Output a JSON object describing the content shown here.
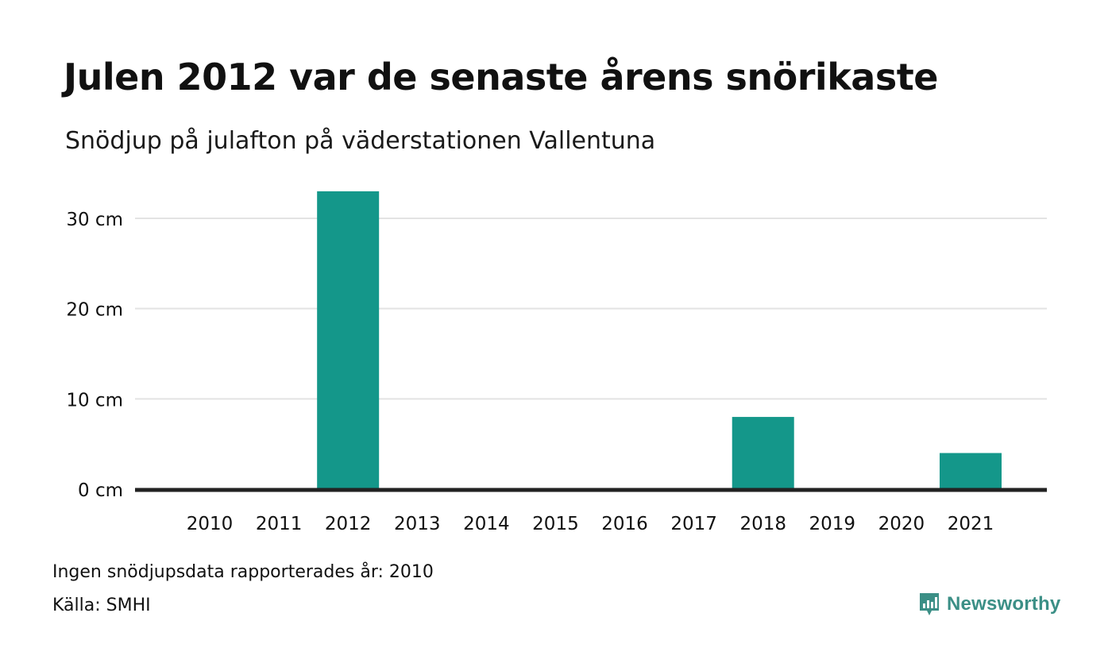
{
  "chart_data": {
    "type": "bar",
    "title": "Julen 2012 var de senaste årens snörikaste",
    "subtitle": "Snödjup på julafton på väderstationen Vallentuna",
    "categories": [
      "2010",
      "2011",
      "2012",
      "2013",
      "2014",
      "2015",
      "2016",
      "2017",
      "2018",
      "2019",
      "2020",
      "2021"
    ],
    "values": [
      0,
      0,
      33,
      0,
      0,
      0,
      0,
      0,
      8,
      0,
      0,
      4
    ],
    "ylim": [
      0,
      33
    ],
    "yticks": [
      0,
      10,
      20,
      30
    ],
    "ytick_labels": [
      "0 cm",
      "10 cm",
      "20 cm",
      "30 cm"
    ],
    "grid": true,
    "bar_color": "#14978a"
  },
  "footer": {
    "note": "Ingen snödjupsdata rapporterades år: 2010",
    "source": "Källa: SMHI"
  },
  "brand": {
    "name": "Newsworthy",
    "logo_icon": "bar-chart-speech-bubble-icon",
    "color": "#3b8f86"
  }
}
